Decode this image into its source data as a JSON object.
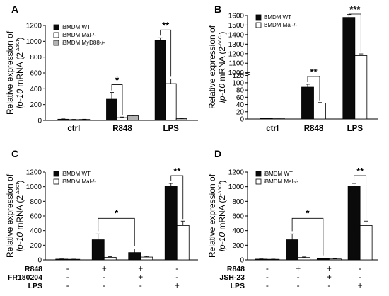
{
  "colors": {
    "ink": "#000000",
    "bar_black": "#0a0a0a",
    "bar_white": "#ffffff",
    "bar_gray": "#b3b3b3"
  },
  "chart_data": [
    {
      "panel": "A",
      "type": "bar",
      "ylabel_line1": "Relative expression of",
      "ylabel_line2_italic": "Ip-10",
      "ylabel_line2_rest": " mRNA (2",
      "ylabel_sup": "-ΔΔCt",
      "ylabel_close": ")",
      "ylim": [
        0,
        1200
      ],
      "yticks": [
        0,
        200,
        400,
        600,
        800,
        1000,
        1200
      ],
      "categories": [
        "ctrl",
        "R848",
        "LPS"
      ],
      "series": [
        {
          "name": "iBMDM WT",
          "color": "#0a0a0a",
          "values": [
            15,
            268,
            1010
          ],
          "errors": [
            4,
            85,
            35
          ]
        },
        {
          "name": "iBMDM Mal-/-",
          "color": "#ffffff",
          "values": [
            10,
            35,
            465
          ],
          "errors": [
            3,
            8,
            60
          ]
        },
        {
          "name": "iBMDM MyD88-/-",
          "color": "#b3b3b3",
          "values": [
            12,
            58,
            22
          ],
          "errors": [
            3,
            8,
            5
          ]
        }
      ],
      "legend": "top-left",
      "significance": [
        {
          "category": 1,
          "from": 0,
          "to": 1,
          "label": "*"
        },
        {
          "category": 2,
          "from": 0,
          "to": 1,
          "label": "**"
        }
      ]
    },
    {
      "panel": "B",
      "type": "bar",
      "ylabel_line1": "Relative expression of",
      "ylabel_line2_italic": "Ip-10",
      "ylabel_line2_rest": " mRNA (2",
      "ylabel_sup": "-ΔΔCt",
      "ylabel_close": ")",
      "ylim": [
        0,
        1600
      ],
      "yticks": [
        0,
        20,
        40,
        60,
        80,
        100,
        120,
        1000,
        1100,
        1200,
        1300,
        1400,
        1500,
        1600
      ],
      "axis_break": {
        "lower_max": 120,
        "upper_min": 1000
      },
      "categories": [
        "ctrl",
        "R848",
        "LPS"
      ],
      "series": [
        {
          "name": "BMDM WT",
          "color": "#0a0a0a",
          "values": [
            2,
            88,
            1580
          ],
          "errors": [
            0.5,
            8,
            30
          ]
        },
        {
          "name": "BMDM Mal-/-",
          "color": "#ffffff",
          "values": [
            2,
            44,
            1180
          ],
          "errors": [
            0.5,
            1.5,
            18
          ]
        }
      ],
      "legend": "top-left",
      "significance": [
        {
          "category": 1,
          "from": 0,
          "to": 1,
          "label": "**"
        },
        {
          "category": 2,
          "from": 0,
          "to": 1,
          "label": "***"
        }
      ]
    },
    {
      "panel": "C",
      "type": "bar",
      "ylabel_line1": "Relative expression of",
      "ylabel_line2_italic": "Ip-10",
      "ylabel_line2_rest": " mRNA (2",
      "ylabel_sup": "-ΔΔCt",
      "ylabel_close": ")",
      "ylim": [
        0,
        1200
      ],
      "yticks": [
        0,
        200,
        400,
        600,
        800,
        1000,
        1200
      ],
      "condition_rows": [
        {
          "label": "R848",
          "signs": [
            "-",
            "+",
            "+",
            "-"
          ]
        },
        {
          "label": "FR180204",
          "signs": [
            "-",
            "-",
            "+",
            "-"
          ]
        },
        {
          "label": "LPS",
          "signs": [
            "-",
            "-",
            "-",
            "+"
          ]
        }
      ],
      "series": [
        {
          "name": "iBMDM WT",
          "color": "#0a0a0a",
          "values": [
            10,
            275,
            100,
            1010
          ],
          "errors": [
            3,
            80,
            50,
            35
          ]
        },
        {
          "name": "iBMDM Mal-/-",
          "color": "#ffffff",
          "values": [
            8,
            35,
            38,
            470
          ],
          "errors": [
            2,
            8,
            10,
            60
          ]
        }
      ],
      "legend": "top-left",
      "significance": [
        {
          "type": "between",
          "a": 1,
          "b": 2,
          "label": "*"
        },
        {
          "category": 3,
          "from": 0,
          "to": 1,
          "label": "**"
        }
      ]
    },
    {
      "panel": "D",
      "type": "bar",
      "ylabel_line1": "Relative expression of",
      "ylabel_line2_italic": "Ip-10",
      "ylabel_line2_rest": " mRNA (2",
      "ylabel_sup": "-ΔΔCt",
      "ylabel_close": ")",
      "ylim": [
        0,
        1200
      ],
      "yticks": [
        0,
        200,
        400,
        600,
        800,
        1000,
        1200
      ],
      "condition_rows": [
        {
          "label": "R848",
          "signs": [
            "-",
            "+",
            "+",
            "-"
          ]
        },
        {
          "label": "JSH-23",
          "signs": [
            "-",
            "-",
            "+",
            "-"
          ]
        },
        {
          "label": "LPS",
          "signs": [
            "-",
            "-",
            "-",
            "+"
          ]
        }
      ],
      "series": [
        {
          "name": "iBMDM WT",
          "color": "#0a0a0a",
          "values": [
            10,
            275,
            18,
            1010
          ],
          "errors": [
            3,
            80,
            5,
            35
          ]
        },
        {
          "name": "iBMDM Mal-/-",
          "color": "#ffffff",
          "values": [
            8,
            32,
            12,
            470
          ],
          "errors": [
            2,
            8,
            3,
            60
          ]
        }
      ],
      "legend": "top-left",
      "significance": [
        {
          "type": "between",
          "a": 1,
          "b": 2,
          "label": "*"
        },
        {
          "category": 3,
          "from": 0,
          "to": 1,
          "label": "**"
        }
      ]
    }
  ]
}
